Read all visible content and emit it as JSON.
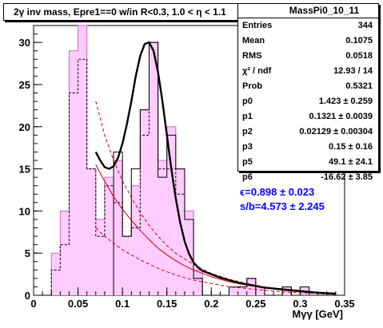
{
  "title": "2γ inv mass, Epre1==0 w/in R<0.3, 1.0 < η < 1.1",
  "stats_box": {
    "name": "MassPi0_10_11",
    "rows": [
      {
        "label": "Entries",
        "value": "344"
      },
      {
        "label": "Mean",
        "value": "0.1075"
      },
      {
        "label": "RMS",
        "value": "0.0518"
      },
      {
        "label": "χ² / ndf",
        "value": "12.93 / 14"
      },
      {
        "label": "Prob",
        "value": "0.5321"
      },
      {
        "label": "p0",
        "value": "1.423 ± 0.259"
      },
      {
        "label": "p1",
        "value": "0.1321 ± 0.0039"
      },
      {
        "label": "p2",
        "value": "0.02129 ± 0.00304"
      },
      {
        "label": "p3",
        "value": "0.15 ± 0.16"
      },
      {
        "label": "p5",
        "value": "49.1 ± 24.1"
      },
      {
        "label": "p6",
        "value": "-16.62 ± 3.85"
      }
    ]
  },
  "annotations": {
    "efficiency": "ϵ=0.898 ± 0.023",
    "signal_background": "s/b=4.573 ± 2.245"
  },
  "colors": {
    "fill": "#ffccff",
    "fit": "#000000",
    "background_curve": "#cc0000",
    "annotation": "#0000ff"
  },
  "chart_data": {
    "type": "bar",
    "title": "2γ inv mass, Epre1==0 w/in R<0.3, 1.0 < η < 1.1",
    "xlabel": "Mγγ [GeV]",
    "ylabel": "",
    "xlim": [
      0,
      0.35
    ],
    "ylim": [
      0,
      32
    ],
    "x_ticks": [
      0,
      0.05,
      0.1,
      0.15,
      0.2,
      0.25,
      0.3,
      0.35
    ],
    "x_tick_labels": [
      "0",
      "0.05",
      "0.1",
      "0.15",
      "0.2",
      "0.25",
      "0.3",
      "0.35"
    ],
    "y_ticks": [
      0,
      5,
      10,
      15,
      20,
      25,
      30
    ],
    "y_tick_labels": [
      "0",
      "5",
      "10",
      "15",
      "20",
      "25",
      "30"
    ],
    "bin_edges": [
      0.02,
      0.03,
      0.04,
      0.05,
      0.06,
      0.07,
      0.08,
      0.09,
      0.1,
      0.11,
      0.12,
      0.13,
      0.14,
      0.15,
      0.16,
      0.17,
      0.18,
      0.19,
      0.2,
      0.21,
      0.22,
      0.23,
      0.24,
      0.25,
      0.26,
      0.27,
      0.28,
      0.29,
      0.3,
      0.31,
      0.32,
      0.33,
      0.34
    ],
    "series": [
      {
        "style": "filled-histogram",
        "values": [
          5,
          10,
          29,
          32,
          15,
          9,
          14,
          16,
          7,
          13,
          22,
          30,
          16,
          20,
          15,
          10,
          3,
          0,
          0,
          0,
          1,
          1,
          2,
          1,
          0,
          0,
          1,
          0,
          1,
          0,
          0,
          0
        ]
      },
      {
        "style": "dashed-histogram",
        "values": [
          3,
          6,
          24,
          28,
          15,
          7,
          13,
          11,
          7,
          8,
          19,
          30,
          15,
          15,
          12,
          9,
          2,
          0,
          0,
          0,
          1,
          1,
          2,
          1,
          0,
          0,
          1,
          0,
          0,
          0,
          0,
          0
        ]
      },
      {
        "style": "solid-histogram",
        "values": [
          0,
          0,
          0,
          0,
          0,
          0,
          0,
          17,
          7,
          15,
          22,
          30,
          14,
          19,
          15,
          9,
          2,
          0,
          0,
          0,
          1,
          1,
          2,
          1,
          0,
          0,
          1,
          0,
          1,
          0,
          0,
          0
        ]
      },
      {
        "style": "fit-curve",
        "x": [
          0.07,
          0.075,
          0.08,
          0.085,
          0.09,
          0.095,
          0.1,
          0.105,
          0.11,
          0.115,
          0.12,
          0.125,
          0.13,
          0.135,
          0.14,
          0.145,
          0.15,
          0.155,
          0.16,
          0.165,
          0.17,
          0.175,
          0.18,
          0.185,
          0.19,
          0.2,
          0.21,
          0.22,
          0.23,
          0.24,
          0.26,
          0.28,
          0.3,
          0.32,
          0.34
        ],
        "values": [
          17.0,
          16.0,
          15.2,
          15.0,
          15.3,
          16.3,
          18.0,
          20.3,
          23.0,
          26.0,
          28.4,
          29.8,
          30.0,
          29.0,
          26.5,
          23.0,
          19.0,
          15.0,
          11.5,
          8.6,
          6.4,
          4.9,
          3.9,
          3.3,
          2.9,
          2.5,
          2.1,
          1.8,
          1.5,
          1.3,
          0.9,
          0.7,
          0.5,
          0.3,
          0.2
        ]
      },
      {
        "style": "background-curve",
        "x": [
          0.07,
          0.08,
          0.09,
          0.1,
          0.11,
          0.12,
          0.13,
          0.14,
          0.15,
          0.16,
          0.17,
          0.18,
          0.19,
          0.2,
          0.22,
          0.24,
          0.26,
          0.28,
          0.3,
          0.32,
          0.34
        ],
        "values": [
          15.5,
          13.5,
          11.7,
          10.2,
          8.9,
          7.7,
          6.6,
          5.6,
          4.8,
          4.1,
          3.5,
          3.0,
          2.6,
          2.2,
          1.6,
          1.2,
          0.9,
          0.6,
          0.4,
          0.3,
          0.2
        ]
      },
      {
        "style": "background-upper",
        "x": [
          0.07,
          0.08,
          0.09,
          0.1,
          0.11,
          0.12,
          0.13,
          0.14,
          0.15,
          0.16,
          0.17,
          0.18,
          0.19,
          0.2,
          0.22,
          0.24,
          0.26,
          0.28,
          0.3,
          0.32,
          0.34
        ],
        "values": [
          23.0,
          19.0,
          16.0,
          13.6,
          11.6,
          9.8,
          8.3,
          7.0,
          5.9,
          5.0,
          4.3,
          3.7,
          3.1,
          2.6,
          1.9,
          1.4,
          1.0,
          0.7,
          0.5,
          0.3,
          0.2
        ]
      },
      {
        "style": "background-lower",
        "x": [
          0.07,
          0.08,
          0.09,
          0.1,
          0.11,
          0.12,
          0.13,
          0.14,
          0.15,
          0.16,
          0.17,
          0.18,
          0.19,
          0.2,
          0.22,
          0.24,
          0.26,
          0.28,
          0.3,
          0.32,
          0.34
        ],
        "values": [
          8.0,
          7.0,
          6.2,
          5.4,
          4.8,
          4.2,
          3.7,
          3.2,
          2.8,
          2.4,
          2.1,
          1.8,
          1.6,
          1.4,
          1.0,
          0.8,
          0.6,
          0.4,
          0.3,
          0.2,
          0.1
        ]
      }
    ]
  }
}
